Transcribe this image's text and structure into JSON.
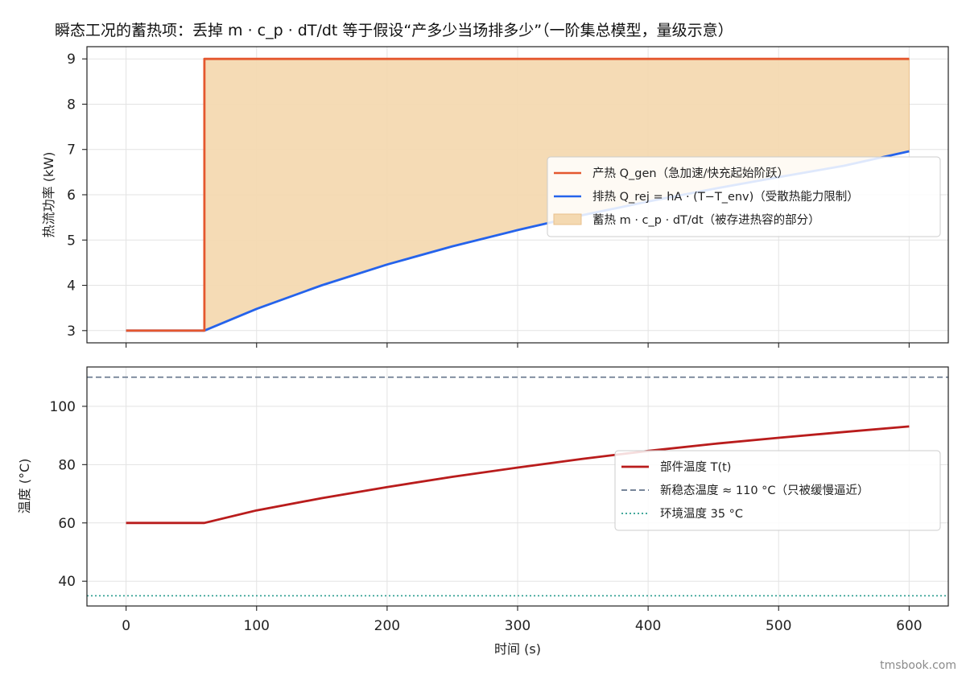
{
  "figure": {
    "title": "瞬态工况的蓄热项：丢掉 m · c_p · dT/dt 等于假设“产多少当场排多少”（一阶集总模型，量级示意）",
    "watermark": "tmsbook.com"
  },
  "chart_data": [
    {
      "id": "power",
      "type": "line",
      "title": "",
      "xlabel": "",
      "ylabel": "热流功率 (kW)",
      "xlim": [
        -30,
        630
      ],
      "ylim": [
        2.73,
        9.27
      ],
      "xticks": [
        0,
        100,
        200,
        300,
        400,
        500,
        600
      ],
      "yticks": [
        3,
        4,
        5,
        6,
        7,
        8,
        9
      ],
      "grid": true,
      "legend_position": "center-right",
      "series": [
        {
          "name": "产热 Q_gen（急加速/快充起始阶跃）",
          "color": "#e4572e",
          "x": [
            0,
            60,
            60,
            600
          ],
          "y": [
            3,
            3,
            9,
            9
          ]
        },
        {
          "name": "排热 Q_rej = hA · (T−T_env)（受散热能力限制）",
          "color": "#2563eb",
          "x": [
            0,
            60,
            100,
            150,
            200,
            250,
            300,
            350,
            400,
            450,
            500,
            550,
            600
          ],
          "y": [
            3,
            3,
            3.48,
            4.0,
            4.46,
            4.86,
            5.22,
            5.55,
            5.85,
            6.13,
            6.39,
            6.64,
            6.96
          ]
        }
      ],
      "fill": {
        "name": "蓄热 m · c_p · dT/dt（被存进热容的部分）",
        "color": "#f4d9b1",
        "edge_color": "#e9c08c",
        "between": [
          "产热 Q_gen（急加速/快充起始阶跃）",
          "排热 Q_rej = hA · (T−T_env)（受散热能力限制）"
        ],
        "x_range": [
          60,
          600
        ]
      }
    },
    {
      "id": "temperature",
      "type": "line",
      "title": "",
      "xlabel": "时间 (s)",
      "ylabel": "温度 (°C)",
      "xlim": [
        -30,
        630
      ],
      "ylim": [
        31.5,
        113.5
      ],
      "xticks": [
        0,
        100,
        200,
        300,
        400,
        500,
        600
      ],
      "yticks": [
        40,
        60,
        80,
        100
      ],
      "grid": true,
      "legend_position": "center-right",
      "series": [
        {
          "name": "部件温度 T(t)",
          "color": "#b91c1c",
          "style": "solid",
          "x": [
            0,
            60,
            100,
            150,
            200,
            250,
            300,
            350,
            400,
            450,
            500,
            550,
            600
          ],
          "y": [
            60,
            60,
            64.3,
            68.5,
            72.3,
            75.8,
            79.0,
            82.0,
            84.7,
            87.1,
            89.2,
            91.2,
            93.1
          ]
        },
        {
          "name": "新稳态温度 ≈ 110 °C（只被缓慢逼近）",
          "color": "#64748b",
          "style": "dashed",
          "hline": 110
        },
        {
          "name": "环境温度 35 °C",
          "color": "#2a9d8f",
          "style": "dotted",
          "hline": 35
        }
      ]
    }
  ]
}
